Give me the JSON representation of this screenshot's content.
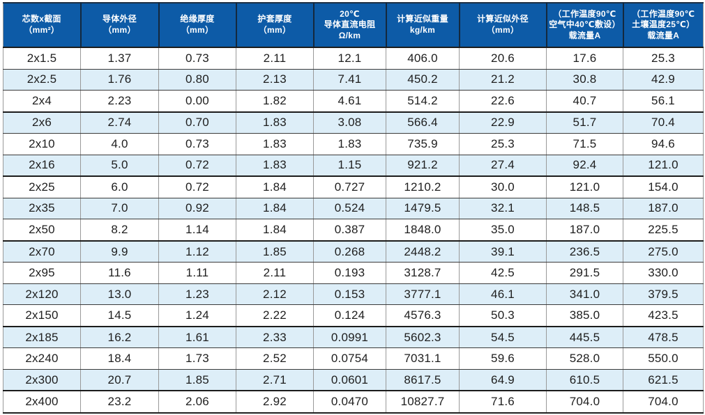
{
  "table": {
    "columns": [
      {
        "lines": [
          "芯数x截面",
          "（mm²）"
        ]
      },
      {
        "lines": [
          "导体外径",
          "（mm）"
        ]
      },
      {
        "lines": [
          "绝缘厚度",
          "（mm）"
        ]
      },
      {
        "lines": [
          "护套厚度",
          "（mm）"
        ]
      },
      {
        "lines": [
          "20℃",
          "导体直流电阻",
          "Ω/km"
        ]
      },
      {
        "lines": [
          "计算近似重量",
          "kg/km"
        ]
      },
      {
        "lines": [
          "计算近似外径",
          "（mm）"
        ]
      },
      {
        "lines": [
          "（工作温度90℃",
          "空气中40℃敷设）",
          "载流量A"
        ]
      },
      {
        "lines": [
          "（工作温度90℃",
          "土壤温度25℃）",
          "载流量A"
        ]
      }
    ],
    "rows": [
      [
        "2x1.5",
        "1.37",
        "0.73",
        "2.11",
        "12.1",
        "406.0",
        "20.6",
        "17.6",
        "25.3"
      ],
      [
        "2x2.5",
        "1.76",
        "0.80",
        "2.13",
        "7.41",
        "450.2",
        "21.2",
        "30.8",
        "42.9"
      ],
      [
        "2x4",
        "2.23",
        "0.00",
        "1.82",
        "4.61",
        "514.2",
        "22.6",
        "40.7",
        "56.1"
      ],
      [
        "2x6",
        "2.74",
        "0.70",
        "1.83",
        "3.08",
        "566.4",
        "22.9",
        "51.7",
        "70.4"
      ],
      [
        "2x10",
        "4.0",
        "0.73",
        "1.83",
        "1.83",
        "735.9",
        "25.3",
        "71.5",
        "94.6"
      ],
      [
        "2x16",
        "5.0",
        "0.72",
        "1.83",
        "1.15",
        "921.2",
        "27.4",
        "92.4",
        "121.0"
      ],
      [
        "2x25",
        "6.0",
        "0.72",
        "1.84",
        "0.727",
        "1210.2",
        "30.0",
        "121.0",
        "154.0"
      ],
      [
        "2x35",
        "7.0",
        "0.92",
        "1.84",
        "0.524",
        "1479.5",
        "32.1",
        "148.5",
        "187.0"
      ],
      [
        "2x50",
        "8.2",
        "1.14",
        "1.84",
        "0.387",
        "1848.0",
        "35.0",
        "187.0",
        "225.5"
      ],
      [
        "2x70",
        "9.9",
        "1.12",
        "1.85",
        "0.268",
        "2448.2",
        "39.1",
        "236.5",
        "275.0"
      ],
      [
        "2x95",
        "11.6",
        "1.11",
        "2.11",
        "0.193",
        "3128.7",
        "42.5",
        "291.5",
        "330.0"
      ],
      [
        "2x120",
        "13.0",
        "1.23",
        "2.12",
        "0.153",
        "3777.1",
        "46.1",
        "341.0",
        "379.5"
      ],
      [
        "2x150",
        "14.5",
        "1.24",
        "2.22",
        "0.124",
        "4576.3",
        "50.3",
        "385.0",
        "423.5"
      ],
      [
        "2x185",
        "16.2",
        "1.61",
        "2.33",
        "0.0991",
        "5602.3",
        "54.5",
        "445.5",
        "478.5"
      ],
      [
        "2x240",
        "18.4",
        "1.73",
        "2.52",
        "0.0754",
        "7031.1",
        "59.6",
        "528.0",
        "550.0"
      ],
      [
        "2x300",
        "20.7",
        "1.85",
        "2.71",
        "0.0601",
        "8617.5",
        "64.9",
        "610.5",
        "621.5"
      ],
      [
        "2x400",
        "23.2",
        "2.06",
        "2.92",
        "0.0470",
        "10827.7",
        "71.6",
        "704.0",
        "704.0"
      ]
    ]
  },
  "colors": {
    "header_bg": "#0d5ba7",
    "header_text": "#ffffff",
    "row_alt_bg": "#ddeef8",
    "row_bg": "#ffffff",
    "grid_vertical": "#999999",
    "grid_horizontal": "#3a3a3a",
    "text": "#1e1e1e"
  }
}
